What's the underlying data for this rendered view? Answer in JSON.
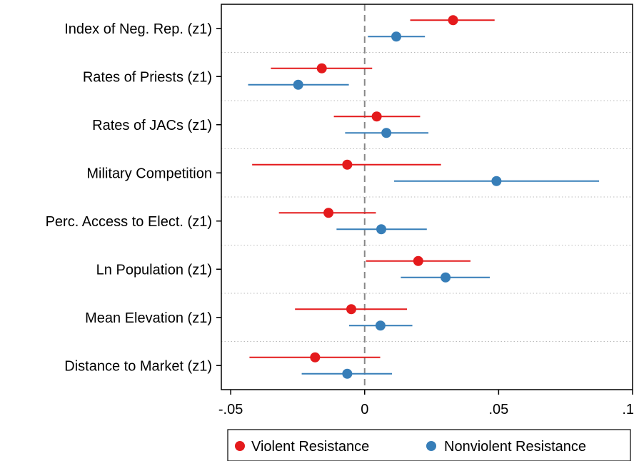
{
  "chart_data": {
    "type": "scatter",
    "orientation": "horizontal",
    "categories": [
      "Index of Neg. Rep. (z1)",
      "Rates of Priests (z1)",
      "Rates of JACs (z1)",
      "Military Competition",
      "Perc. Access to Elect. (z1)",
      "Ln Population (z1)",
      "Mean Elevation (z1)",
      "Distance to Market (z1)"
    ],
    "series": [
      {
        "name": "Violent Resistance",
        "color": "#e41a1c",
        "estimates": [
          0.033,
          -0.016,
          0.0045,
          -0.0065,
          -0.0135,
          0.02,
          -0.005,
          -0.0185
        ],
        "ci_low": [
          0.017,
          -0.035,
          -0.0115,
          -0.042,
          -0.032,
          0.0005,
          -0.026,
          -0.043
        ],
        "ci_high": [
          0.0485,
          0.0028,
          0.0207,
          0.0285,
          0.0042,
          0.0395,
          0.0158,
          0.0058
        ]
      },
      {
        "name": "Nonviolent Resistance",
        "color": "#377eb8",
        "estimates": [
          0.0118,
          -0.0248,
          0.0081,
          0.0492,
          0.0062,
          0.0302,
          0.0059,
          -0.0065
        ],
        "ci_low": [
          0.0012,
          -0.0435,
          -0.0073,
          0.011,
          -0.0105,
          0.0135,
          -0.0058,
          -0.0235
        ],
        "ci_high": [
          0.0225,
          -0.0059,
          0.0238,
          0.0875,
          0.0232,
          0.0467,
          0.0178,
          0.0102
        ]
      }
    ],
    "xticks": [
      -0.05,
      0,
      0.05,
      0.1
    ],
    "xtick_labels": [
      "-.05",
      "0",
      ".05",
      ".1"
    ],
    "xlim": [
      -0.0535,
      0.1
    ],
    "reference_line": 0,
    "grid": "dotted horizontal separators",
    "legend_position": "bottom"
  }
}
